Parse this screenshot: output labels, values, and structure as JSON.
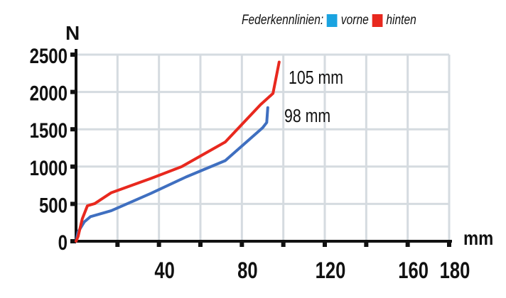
{
  "chart_data": {
    "type": "line",
    "title": "",
    "legend_title": "Federkennlinien:",
    "legend_placement": "top-right",
    "xlabel": "mm",
    "ylabel": "N",
    "xlim": [
      0,
      180
    ],
    "ylim": [
      0,
      2500
    ],
    "x_grid_step": 20,
    "y_grid_step": 500,
    "x_tick_labels": [
      "40",
      "80",
      "120",
      "160",
      "180"
    ],
    "x_tick_values": [
      40,
      80,
      120,
      160,
      180
    ],
    "y_tick_labels": [
      "0",
      "500",
      "1000",
      "1500",
      "2000",
      "2500"
    ],
    "y_tick_values": [
      0,
      500,
      1000,
      1500,
      2000,
      2500
    ],
    "grid": true,
    "series": [
      {
        "name": "vorne",
        "color": "#1aa3e0",
        "line_color": "#3f6fc0",
        "annotation": "98  mm",
        "x": [
          0,
          1,
          4,
          7,
          17,
          36,
          53,
          72,
          90,
          92,
          92.5
        ],
        "y": [
          0,
          125,
          260,
          330,
          410,
          640,
          860,
          1080,
          1520,
          1590,
          1790
        ]
      },
      {
        "name": "hinten",
        "color": "#e8281e",
        "line_color": "#e8281e",
        "annotation": "105  mm",
        "x": [
          0,
          1,
          3,
          5.5,
          9,
          17,
          36,
          51,
          72,
          89,
          95,
          98
        ],
        "y": [
          0,
          65,
          300,
          475,
          505,
          650,
          840,
          1000,
          1330,
          1830,
          1980,
          2400
        ]
      }
    ]
  }
}
